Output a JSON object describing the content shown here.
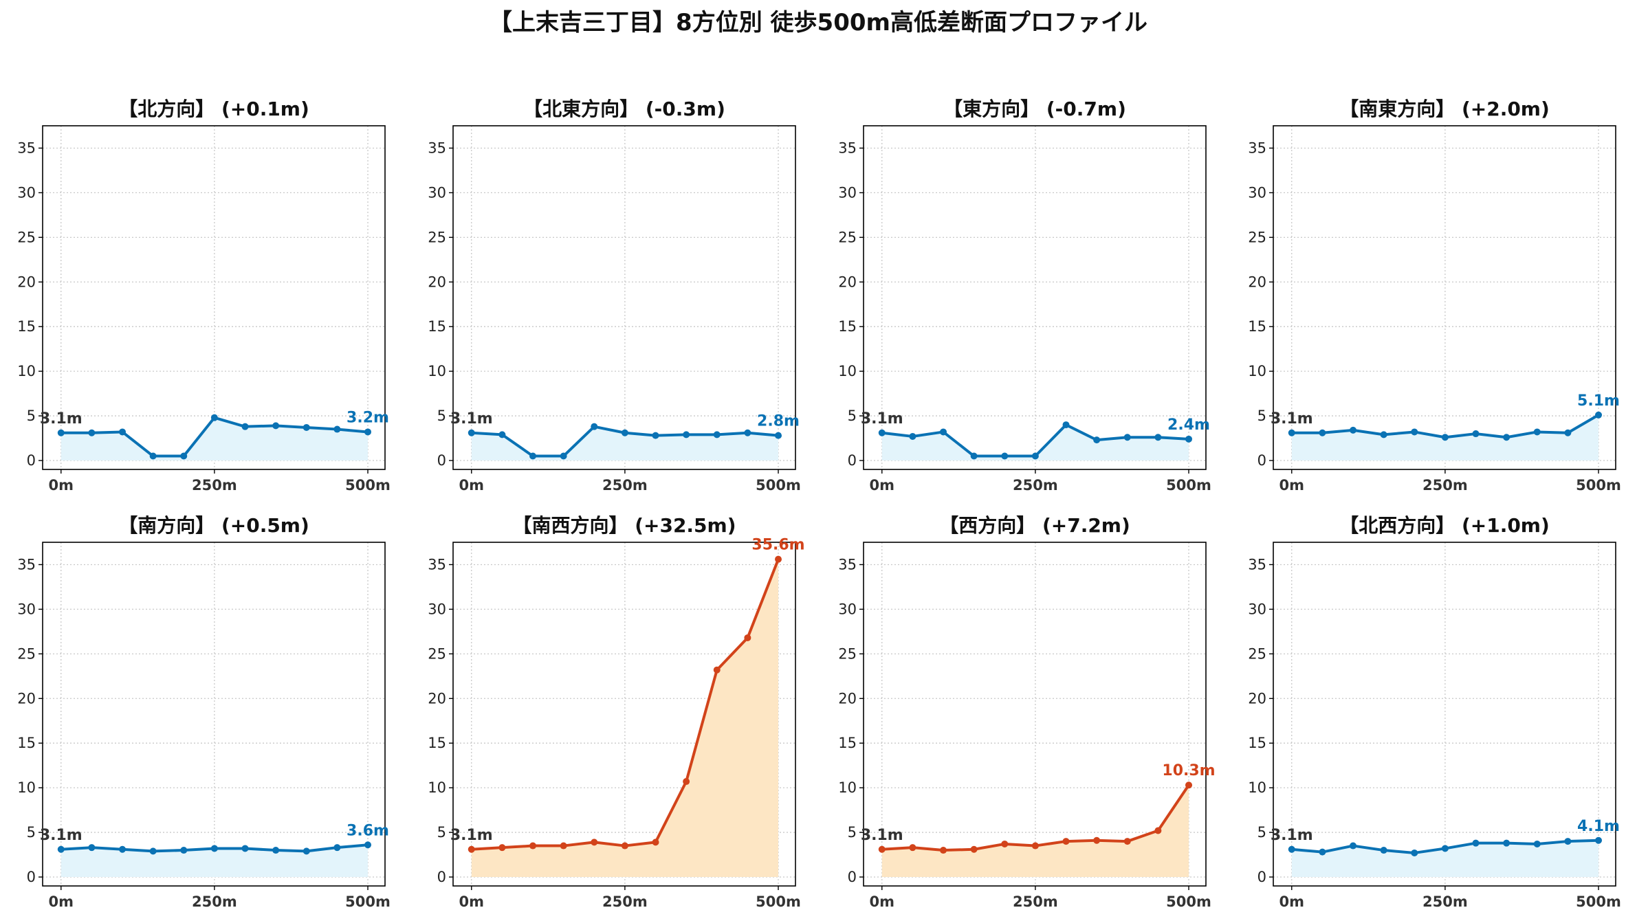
{
  "title": "【上末吉三丁目】8方位別 徒歩500m高低差断面プロファイル",
  "colors": {
    "low": "#0a72b4",
    "low_fill": "#e3f4fb",
    "high": "#d2431a",
    "high_fill": "#fde6c4"
  },
  "chart_data": [
    {
      "type": "area",
      "title": "【北方向】 (+0.1m)",
      "x": [
        0,
        50,
        100,
        150,
        200,
        250,
        300,
        350,
        400,
        450,
        500
      ],
      "values": [
        3.1,
        3.1,
        3.2,
        0.5,
        0.5,
        4.8,
        3.8,
        3.9,
        3.7,
        3.5,
        3.2
      ],
      "xticks": [
        "0m",
        "250m",
        "500m"
      ],
      "yticks": [
        0,
        5,
        10,
        15,
        20,
        25,
        30,
        35
      ],
      "ylim": [
        -1,
        37.5
      ],
      "start_label": "3.1m",
      "end_label": "3.2m",
      "color_group": "low"
    },
    {
      "type": "area",
      "title": "【北東方向】 (-0.3m)",
      "x": [
        0,
        50,
        100,
        150,
        200,
        250,
        300,
        350,
        400,
        450,
        500
      ],
      "values": [
        3.1,
        2.9,
        0.5,
        0.5,
        3.8,
        3.1,
        2.8,
        2.9,
        2.9,
        3.1,
        2.8
      ],
      "xticks": [
        "0m",
        "250m",
        "500m"
      ],
      "yticks": [
        0,
        5,
        10,
        15,
        20,
        25,
        30,
        35
      ],
      "ylim": [
        -1,
        37.5
      ],
      "start_label": "3.1m",
      "end_label": "2.8m",
      "color_group": "low"
    },
    {
      "type": "area",
      "title": "【東方向】 (-0.7m)",
      "x": [
        0,
        50,
        100,
        150,
        200,
        250,
        300,
        350,
        400,
        450,
        500
      ],
      "values": [
        3.1,
        2.7,
        3.2,
        0.5,
        0.5,
        0.5,
        4.0,
        2.3,
        2.6,
        2.6,
        2.4
      ],
      "xticks": [
        "0m",
        "250m",
        "500m"
      ],
      "yticks": [
        0,
        5,
        10,
        15,
        20,
        25,
        30,
        35
      ],
      "ylim": [
        -1,
        37.5
      ],
      "start_label": "3.1m",
      "end_label": "2.4m",
      "color_group": "low"
    },
    {
      "type": "area",
      "title": "【南東方向】 (+2.0m)",
      "x": [
        0,
        50,
        100,
        150,
        200,
        250,
        300,
        350,
        400,
        450,
        500
      ],
      "values": [
        3.1,
        3.1,
        3.4,
        2.9,
        3.2,
        2.6,
        3.0,
        2.6,
        3.2,
        3.1,
        5.1
      ],
      "xticks": [
        "0m",
        "250m",
        "500m"
      ],
      "yticks": [
        0,
        5,
        10,
        15,
        20,
        25,
        30,
        35
      ],
      "ylim": [
        -1,
        37.5
      ],
      "start_label": "3.1m",
      "end_label": "5.1m",
      "color_group": "low"
    },
    {
      "type": "area",
      "title": "【南方向】 (+0.5m)",
      "x": [
        0,
        50,
        100,
        150,
        200,
        250,
        300,
        350,
        400,
        450,
        500
      ],
      "values": [
        3.1,
        3.3,
        3.1,
        2.9,
        3.0,
        3.2,
        3.2,
        3.0,
        2.9,
        3.3,
        3.6
      ],
      "xticks": [
        "0m",
        "250m",
        "500m"
      ],
      "yticks": [
        0,
        5,
        10,
        15,
        20,
        25,
        30,
        35
      ],
      "ylim": [
        -1,
        37.5
      ],
      "start_label": "3.1m",
      "end_label": "3.6m",
      "color_group": "low"
    },
    {
      "type": "area",
      "title": "【南西方向】 (+32.5m)",
      "x": [
        0,
        50,
        100,
        150,
        200,
        250,
        300,
        350,
        400,
        450,
        500
      ],
      "values": [
        3.1,
        3.3,
        3.5,
        3.5,
        3.9,
        3.5,
        3.9,
        10.7,
        23.2,
        26.8,
        35.6
      ],
      "xticks": [
        "0m",
        "250m",
        "500m"
      ],
      "yticks": [
        0,
        5,
        10,
        15,
        20,
        25,
        30,
        35
      ],
      "ylim": [
        -1,
        37.5
      ],
      "start_label": "3.1m",
      "end_label": "35.6m",
      "color_group": "high"
    },
    {
      "type": "area",
      "title": "【西方向】 (+7.2m)",
      "x": [
        0,
        50,
        100,
        150,
        200,
        250,
        300,
        350,
        400,
        450,
        500
      ],
      "values": [
        3.1,
        3.3,
        3.0,
        3.1,
        3.7,
        3.5,
        4.0,
        4.1,
        4.0,
        5.2,
        10.3
      ],
      "xticks": [
        "0m",
        "250m",
        "500m"
      ],
      "yticks": [
        0,
        5,
        10,
        15,
        20,
        25,
        30,
        35
      ],
      "ylim": [
        -1,
        37.5
      ],
      "start_label": "3.1m",
      "end_label": "10.3m",
      "color_group": "high"
    },
    {
      "type": "area",
      "title": "【北西方向】 (+1.0m)",
      "x": [
        0,
        50,
        100,
        150,
        200,
        250,
        300,
        350,
        400,
        450,
        500
      ],
      "values": [
        3.1,
        2.8,
        3.5,
        3.0,
        2.7,
        3.2,
        3.8,
        3.8,
        3.7,
        4.0,
        4.1
      ],
      "xticks": [
        "0m",
        "250m",
        "500m"
      ],
      "yticks": [
        0,
        5,
        10,
        15,
        20,
        25,
        30,
        35
      ],
      "ylim": [
        -1,
        37.5
      ],
      "start_label": "3.1m",
      "end_label": "4.1m",
      "color_group": "low"
    }
  ]
}
